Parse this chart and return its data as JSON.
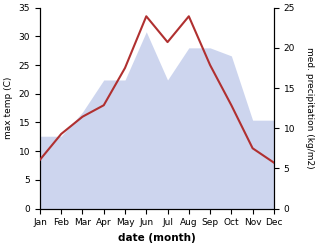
{
  "months": [
    "Jan",
    "Feb",
    "Mar",
    "Apr",
    "May",
    "Jun",
    "Jul",
    "Aug",
    "Sep",
    "Oct",
    "Nov",
    "Dec"
  ],
  "temperature": [
    8.5,
    13.0,
    16.0,
    18.0,
    24.5,
    33.5,
    29.0,
    33.5,
    25.0,
    18.0,
    10.5,
    8.0
  ],
  "precipitation": [
    9,
    9,
    12,
    16,
    16,
    22,
    16,
    20,
    20,
    19,
    11,
    11
  ],
  "temp_color": "#b03030",
  "precip_fill_color": "#b8c4e8",
  "xlabel": "date (month)",
  "ylabel_left": "max temp (C)",
  "ylabel_right": "med. precipitation (kg/m2)",
  "ylim_left": [
    0,
    35
  ],
  "ylim_right": [
    0,
    25
  ],
  "yticks_left": [
    0,
    5,
    10,
    15,
    20,
    25,
    30,
    35
  ],
  "yticks_right": [
    0,
    5,
    10,
    15,
    20,
    25
  ],
  "bg_color": "#ffffff",
  "temp_linewidth": 1.5,
  "precip_alpha": 0.7,
  "figsize": [
    3.18,
    2.47
  ],
  "dpi": 100
}
